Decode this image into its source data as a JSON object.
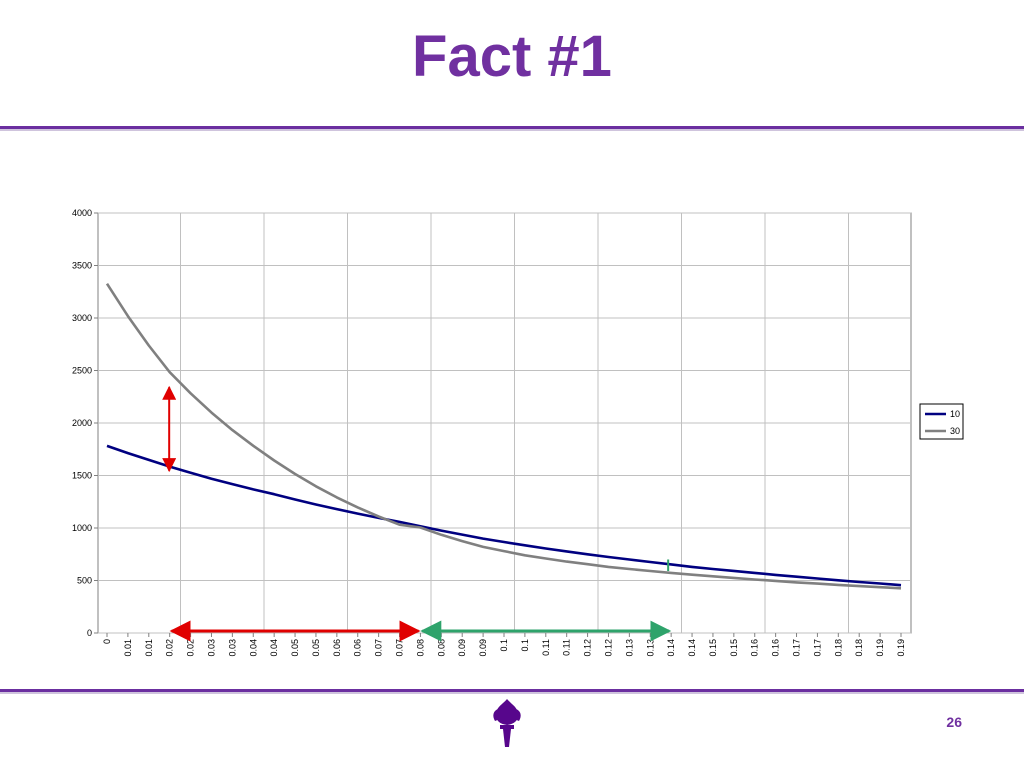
{
  "slide": {
    "title": "Fact #1",
    "page_number": "26"
  },
  "colors": {
    "title": "#7030A0",
    "rule": "#6B2FA0",
    "series_10": "#000080",
    "series_30": "#808080",
    "red_arrow": "#E00000",
    "green_arrow": "#2EA36B"
  },
  "icons": {
    "logo": "nyu-torch-logo"
  },
  "chart_data": {
    "type": "line",
    "grid": true,
    "legend_position": "right",
    "ylim": [
      0,
      4000
    ],
    "y_ticks": [
      0,
      500,
      1000,
      1500,
      2000,
      2500,
      3000,
      3500,
      4000
    ],
    "x_tick_labels": [
      "0",
      "0.01",
      "0.01",
      "0.02",
      "0.02",
      "0.03",
      "0.03",
      "0.04",
      "0.04",
      "0.05",
      "0.05",
      "0.06",
      "0.06",
      "0.07",
      "0.07",
      "0.08",
      "0.08",
      "0.09",
      "0.09",
      "0.1",
      "0.1",
      "0.11",
      "0.11",
      "0.12",
      "0.12",
      "0.13",
      "0.13",
      "0.14",
      "0.14",
      "0.15",
      "0.15",
      "0.16",
      "0.16",
      "0.17",
      "0.17",
      "0.18",
      "0.18",
      "0.19",
      "0.19"
    ],
    "series": [
      {
        "name": "10",
        "values": [
          1782,
          1713,
          1649,
          1585,
          1526,
          1469,
          1418,
          1368,
          1322,
          1271,
          1224,
          1180,
          1137,
          1096,
          1058,
          1016,
          975,
          937,
          899,
          867,
          835,
          805,
          777,
          750,
          724,
          700,
          676,
          653,
          630,
          610,
          591,
          572,
          553,
          536,
          519,
          502,
          486,
          471,
          455
        ]
      },
      {
        "name": "30",
        "values": [
          3327,
          3018,
          2738,
          2484,
          2283,
          2099,
          1932,
          1783,
          1643,
          1514,
          1397,
          1291,
          1196,
          1110,
          1031,
          1005,
          935,
          875,
          820,
          780,
          740,
          710,
          680,
          655,
          630,
          610,
          590,
          572,
          555,
          540,
          525,
          510,
          496,
          482,
          470,
          458,
          447,
          436,
          426
        ]
      }
    ],
    "annotations": [
      {
        "kind": "vertical-double-arrow",
        "color": "red",
        "x_index": 3,
        "y_from": 1526,
        "y_to": 2360
      },
      {
        "kind": "horizontal-double-arrow",
        "color": "red",
        "x_from_index": 3,
        "x_to_index": 15,
        "y": 0
      },
      {
        "kind": "horizontal-double-arrow",
        "color": "green",
        "x_from_index": 15,
        "x_to_index": 27,
        "y": 0
      },
      {
        "kind": "vertical-marker",
        "color": "green",
        "x_index": 27,
        "y_from": 590,
        "y_to": 700
      }
    ]
  }
}
